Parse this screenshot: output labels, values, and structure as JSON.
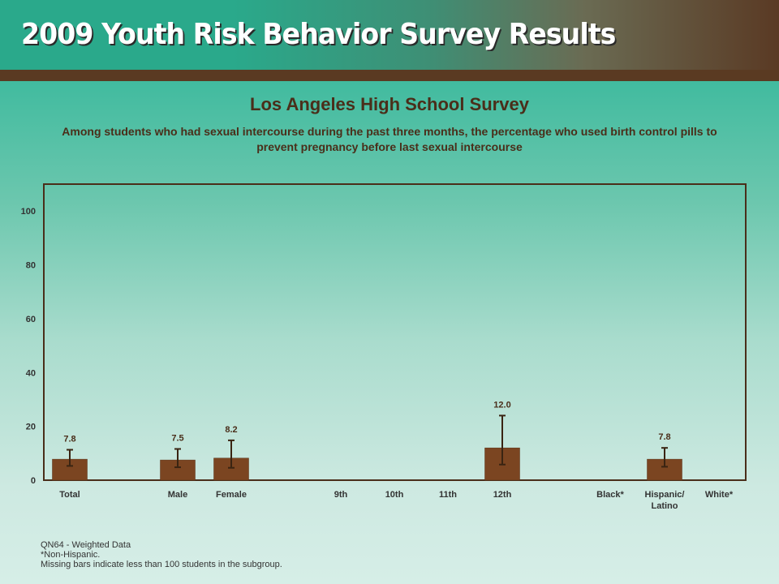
{
  "header": {
    "title": "2009 Youth Risk Behavior Survey Results"
  },
  "footnotes": [
    "QN64 - Weighted Data",
    "*Non-Hispanic.",
    "Missing bars indicate less than 100 students in the subgroup."
  ],
  "colors": {
    "bar": "#7b4521",
    "plot_border": "#4a2e1a",
    "text": "#4a2e1a"
  },
  "chart_data": {
    "type": "bar",
    "title": "Los Angeles High School Survey",
    "subtitle": "Among students who had sexual intercourse during the past three months, the percentage who used birth control pills to prevent pregnancy before last sexual intercourse",
    "categories": [
      "Total",
      "Male",
      "Female",
      "9th",
      "10th",
      "11th",
      "12th",
      "Black*",
      "Hispanic/ Latino",
      "White*"
    ],
    "values": [
      7.8,
      7.5,
      8.2,
      null,
      null,
      null,
      12.0,
      null,
      7.8,
      null
    ],
    "value_labels": [
      "7.8",
      "7.5",
      "8.2",
      "",
      "",
      "",
      "12.0",
      "",
      "7.8",
      ""
    ],
    "error_bars": [
      [
        5.3,
        11.3
      ],
      [
        4.8,
        11.6
      ],
      [
        4.6,
        14.8
      ],
      null,
      null,
      null,
      [
        5.8,
        24.0
      ],
      null,
      [
        5.0,
        12.0
      ],
      null
    ],
    "ylim": [
      0,
      110
    ],
    "yticks": [
      0,
      20,
      40,
      60,
      80,
      100
    ],
    "xlabel": "",
    "ylabel": "",
    "grid": false,
    "legend": "none"
  }
}
